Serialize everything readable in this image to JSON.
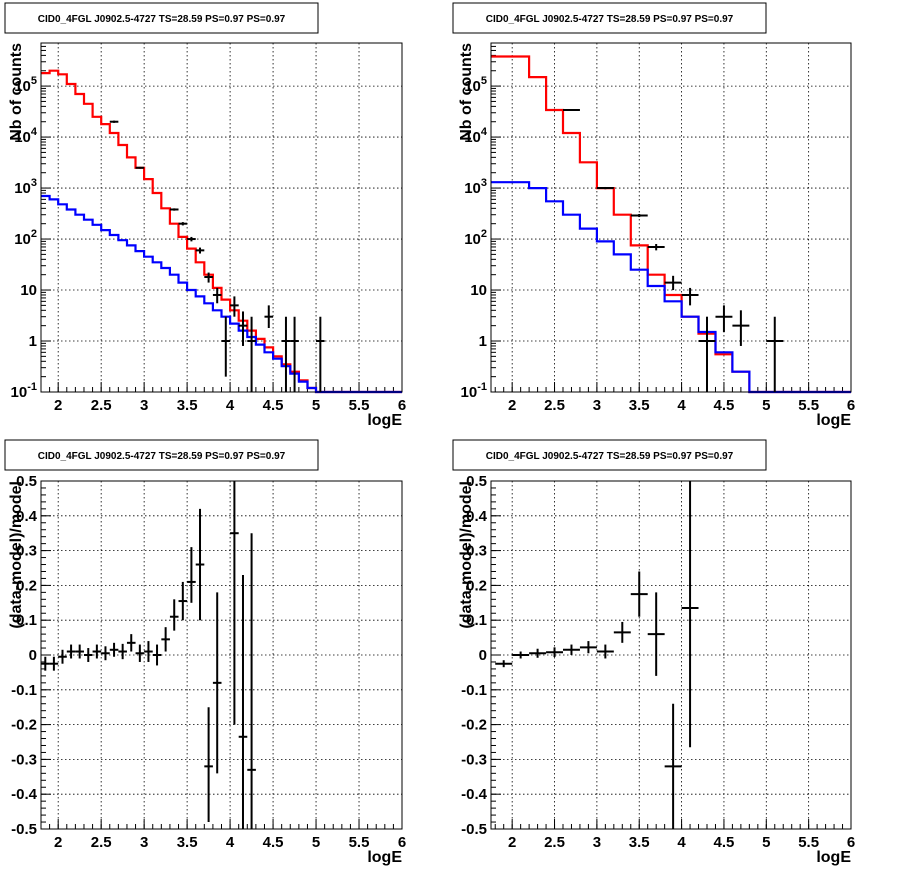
{
  "colors": {
    "model_total": "#ff0000",
    "model_background": "#0000ff",
    "data": "#000000"
  },
  "chart_data": [
    {
      "type": "histogram",
      "title": "CID0_4FGL J0902.5-4727 TS=28.59 PS=0.97 PS=0.97",
      "xlabel": "logE",
      "ylabel": "Nb of counts",
      "ylog": true,
      "xlim": [
        1.8,
        6.0
      ],
      "ylim": [
        0.1,
        700000
      ],
      "grid": true,
      "xticks": [
        "2",
        "2.5",
        "3",
        "3.5",
        "4",
        "4.5",
        "5",
        "5.5",
        "6"
      ],
      "yticks": [
        "10^-1",
        "1",
        "10",
        "10^2",
        "10^3",
        "10^4",
        "10^5"
      ],
      "series": [
        {
          "role": "model_total",
          "kind": "step",
          "edges": [
            1.8,
            1.9,
            2.0,
            2.1,
            2.2,
            2.3,
            2.4,
            2.5,
            2.6,
            2.7,
            2.8,
            2.9,
            3.0,
            3.1,
            3.2,
            3.3,
            3.4,
            3.5,
            3.6,
            3.7,
            3.8,
            3.9,
            4.0,
            4.1,
            4.2,
            4.3,
            4.4,
            4.5,
            4.6,
            4.7,
            4.8,
            4.9,
            5.0,
            5.1,
            5.2,
            5.3,
            5.4,
            5.5,
            5.6,
            5.7,
            5.8,
            5.9,
            6.0
          ],
          "values": [
            180000,
            200000,
            170000,
            110000,
            70000,
            45000,
            25000,
            18000,
            12000,
            7000,
            4000,
            2500,
            1500,
            800,
            400,
            200,
            110,
            65,
            35,
            20,
            11,
            6.5,
            4,
            2.5,
            1.6,
            1.1,
            0.75,
            0.5,
            0.35,
            0.25,
            0.17,
            0.12,
            0.1,
            0.1,
            0.1,
            0.1,
            0.1,
            0.1,
            0.1,
            0.1,
            0.1,
            0.1
          ]
        },
        {
          "role": "model_background",
          "kind": "step",
          "edges": [
            1.8,
            1.9,
            2.0,
            2.1,
            2.2,
            2.3,
            2.4,
            2.5,
            2.6,
            2.7,
            2.8,
            2.9,
            3.0,
            3.1,
            3.2,
            3.3,
            3.4,
            3.5,
            3.6,
            3.7,
            3.8,
            3.9,
            4.0,
            4.1,
            4.2,
            4.3,
            4.4,
            4.5,
            4.6,
            4.7,
            4.8,
            4.9,
            5.0,
            5.1,
            5.2,
            5.3,
            5.4,
            5.5,
            5.6,
            5.7,
            5.8,
            5.9,
            6.0
          ],
          "values": [
            700,
            600,
            480,
            380,
            300,
            240,
            190,
            150,
            120,
            95,
            75,
            58,
            45,
            35,
            27,
            20,
            14,
            10,
            7.5,
            5.5,
            4,
            3,
            2.2,
            1.6,
            1.2,
            0.85,
            0.6,
            0.45,
            0.32,
            0.23,
            0.16,
            0.12,
            0.1,
            0.1,
            0.1,
            0.1,
            0.1,
            0.1,
            0.1,
            0.1,
            0.1,
            0.1
          ]
        },
        {
          "role": "data",
          "kind": "errorbar",
          "points": [
            {
              "x": 2.65,
              "xerr": 0.05,
              "y": 20000,
              "ylo": 19000,
              "yhi": 21000
            },
            {
              "x": 2.95,
              "xerr": 0.05,
              "y": 2500,
              "ylo": 2400,
              "yhi": 2600
            },
            {
              "x": 3.35,
              "xerr": 0.05,
              "y": 380,
              "ylo": 360,
              "yhi": 400
            },
            {
              "x": 3.45,
              "xerr": 0.05,
              "y": 200,
              "ylo": 185,
              "yhi": 215
            },
            {
              "x": 3.55,
              "xerr": 0.05,
              "y": 100,
              "ylo": 90,
              "yhi": 110
            },
            {
              "x": 3.65,
              "xerr": 0.05,
              "y": 60,
              "ylo": 52,
              "yhi": 68
            },
            {
              "x": 3.75,
              "xerr": 0.05,
              "y": 18,
              "ylo": 14,
              "yhi": 22
            },
            {
              "x": 3.85,
              "xerr": 0.05,
              "y": 8,
              "ylo": 5.5,
              "yhi": 11
            },
            {
              "x": 3.95,
              "xerr": 0.05,
              "y": 1,
              "ylo": 0.2,
              "yhi": 3
            },
            {
              "x": 4.05,
              "xerr": 0.05,
              "y": 5,
              "ylo": 3,
              "yhi": 7.5
            },
            {
              "x": 4.15,
              "xerr": 0.05,
              "y": 2,
              "ylo": 0.8,
              "yhi": 3.8
            },
            {
              "x": 4.25,
              "xerr": 0.05,
              "y": 1,
              "ylo": 0.1,
              "yhi": 3
            },
            {
              "x": 4.45,
              "xerr": 0.05,
              "y": 3,
              "ylo": 1.8,
              "yhi": 5
            },
            {
              "x": 4.65,
              "xerr": 0.05,
              "y": 1,
              "ylo": 0.1,
              "yhi": 3
            },
            {
              "x": 4.75,
              "xerr": 0.05,
              "y": 1,
              "ylo": 0.1,
              "yhi": 3
            },
            {
              "x": 5.05,
              "xerr": 0.05,
              "y": 1,
              "ylo": 0.1,
              "yhi": 3
            }
          ]
        }
      ]
    },
    {
      "type": "histogram",
      "title": "CID0_4FGL J0902.5-4727 TS=28.59 PS=0.97 PS=0.97",
      "xlabel": "logE",
      "ylabel": "Nb of counts",
      "ylog": true,
      "xlim": [
        1.75,
        6.0
      ],
      "ylim": [
        0.1,
        700000
      ],
      "grid": true,
      "xticks": [
        "2",
        "2.5",
        "3",
        "3.5",
        "4",
        "4.5",
        "5",
        "5.5",
        "6"
      ],
      "yticks": [
        "10^-1",
        "1",
        "10",
        "10^2",
        "10^3",
        "10^4",
        "10^5"
      ],
      "series": [
        {
          "role": "model_total",
          "kind": "step",
          "edges": [
            1.75,
            2.0,
            2.2,
            2.4,
            2.6,
            2.8,
            3.0,
            3.2,
            3.4,
            3.6,
            3.8,
            4.0,
            4.2,
            4.4,
            4.6,
            4.8,
            5.0,
            5.2,
            5.4,
            5.6,
            5.8,
            6.0
          ],
          "values": [
            380000,
            380000,
            150000,
            34000,
            12000,
            3200,
            1000,
            300,
            75,
            20,
            8,
            3,
            1.4,
            0.55,
            0.25,
            0.1,
            0.1,
            0.1,
            0.1,
            0.1,
            0.1
          ]
        },
        {
          "role": "model_background",
          "kind": "step",
          "edges": [
            1.75,
            2.0,
            2.2,
            2.4,
            2.6,
            2.8,
            3.0,
            3.2,
            3.4,
            3.6,
            3.8,
            4.0,
            4.2,
            4.4,
            4.6,
            4.8,
            5.0,
            5.2,
            5.4,
            5.6,
            5.8,
            6.0
          ],
          "values": [
            1300,
            1300,
            1000,
            550,
            300,
            160,
            90,
            50,
            25,
            12,
            6,
            3,
            1.5,
            0.6,
            0.25,
            0.1,
            0.1,
            0.1,
            0.1,
            0.1,
            0.1
          ]
        },
        {
          "role": "data",
          "kind": "errorbar",
          "points": [
            {
              "x": 2.7,
              "xerr": 0.1,
              "y": 34000,
              "ylo": 33000,
              "yhi": 35000
            },
            {
              "x": 3.1,
              "xerr": 0.1,
              "y": 1000,
              "ylo": 950,
              "yhi": 1050
            },
            {
              "x": 3.5,
              "xerr": 0.1,
              "y": 290,
              "ylo": 270,
              "yhi": 310
            },
            {
              "x": 3.7,
              "xerr": 0.1,
              "y": 70,
              "ylo": 60,
              "yhi": 80
            },
            {
              "x": 3.9,
              "xerr": 0.1,
              "y": 14,
              "ylo": 10,
              "yhi": 19
            },
            {
              "x": 4.1,
              "xerr": 0.1,
              "y": 8,
              "ylo": 5,
              "yhi": 11
            },
            {
              "x": 4.3,
              "xerr": 0.1,
              "y": 1,
              "ylo": 0.1,
              "yhi": 3
            },
            {
              "x": 4.5,
              "xerr": 0.1,
              "y": 3,
              "ylo": 1.5,
              "yhi": 5
            },
            {
              "x": 4.7,
              "xerr": 0.1,
              "y": 2,
              "ylo": 0.8,
              "yhi": 4
            },
            {
              "x": 5.1,
              "xerr": 0.1,
              "y": 1,
              "ylo": 0.1,
              "yhi": 3
            }
          ]
        }
      ]
    },
    {
      "type": "scatter",
      "title": "CID0_4FGL J0902.5-4727 TS=28.59 PS=0.97 PS=0.97",
      "xlabel": "logE",
      "ylabel": "(data-model)/model",
      "xlim": [
        1.8,
        6.0
      ],
      "ylim": [
        -0.5,
        0.5
      ],
      "grid": true,
      "xticks": [
        "2",
        "2.5",
        "3",
        "3.5",
        "4",
        "4.5",
        "5",
        "5.5",
        "6"
      ],
      "yticks": [
        "-0.5",
        "-0.4",
        "-0.3",
        "-0.2",
        "-0.1",
        "0",
        "0.1",
        "0.2",
        "0.3",
        "0.4",
        "0.5"
      ],
      "series": [
        {
          "role": "data",
          "kind": "errorbar",
          "points": [
            {
              "x": 1.85,
              "xerr": 0.05,
              "y": -0.025,
              "ylo": -0.045,
              "yhi": -0.005
            },
            {
              "x": 1.95,
              "xerr": 0.05,
              "y": -0.025,
              "ylo": -0.045,
              "yhi": -0.005
            },
            {
              "x": 2.05,
              "xerr": 0.05,
              "y": -0.005,
              "ylo": -0.025,
              "yhi": 0.015
            },
            {
              "x": 2.15,
              "xerr": 0.05,
              "y": 0.01,
              "ylo": -0.01,
              "yhi": 0.03
            },
            {
              "x": 2.25,
              "xerr": 0.05,
              "y": 0.01,
              "ylo": -0.01,
              "yhi": 0.03
            },
            {
              "x": 2.35,
              "xerr": 0.05,
              "y": 0.0,
              "ylo": -0.02,
              "yhi": 0.02
            },
            {
              "x": 2.45,
              "xerr": 0.05,
              "y": 0.01,
              "ylo": -0.01,
              "yhi": 0.03
            },
            {
              "x": 2.55,
              "xerr": 0.05,
              "y": 0.005,
              "ylo": -0.015,
              "yhi": 0.025
            },
            {
              "x": 2.65,
              "xerr": 0.05,
              "y": 0.015,
              "ylo": -0.005,
              "yhi": 0.035
            },
            {
              "x": 2.75,
              "xerr": 0.05,
              "y": 0.01,
              "ylo": -0.012,
              "yhi": 0.032
            },
            {
              "x": 2.85,
              "xerr": 0.05,
              "y": 0.035,
              "ylo": 0.01,
              "yhi": 0.06
            },
            {
              "x": 2.95,
              "xerr": 0.05,
              "y": 0.005,
              "ylo": -0.02,
              "yhi": 0.03
            },
            {
              "x": 3.05,
              "xerr": 0.05,
              "y": 0.01,
              "ylo": -0.02,
              "yhi": 0.04
            },
            {
              "x": 3.15,
              "xerr": 0.05,
              "y": 0.0,
              "ylo": -0.03,
              "yhi": 0.03
            },
            {
              "x": 3.25,
              "xerr": 0.05,
              "y": 0.045,
              "ylo": 0.01,
              "yhi": 0.08
            },
            {
              "x": 3.35,
              "xerr": 0.05,
              "y": 0.11,
              "ylo": 0.07,
              "yhi": 0.16
            },
            {
              "x": 3.45,
              "xerr": 0.05,
              "y": 0.155,
              "ylo": 0.1,
              "yhi": 0.21
            },
            {
              "x": 3.55,
              "xerr": 0.05,
              "y": 0.21,
              "ylo": 0.15,
              "yhi": 0.31
            },
            {
              "x": 3.65,
              "xerr": 0.05,
              "y": 0.26,
              "ylo": 0.1,
              "yhi": 0.42
            },
            {
              "x": 3.75,
              "xerr": 0.05,
              "y": -0.32,
              "ylo": -0.48,
              "yhi": -0.15
            },
            {
              "x": 3.85,
              "xerr": 0.05,
              "y": -0.08,
              "ylo": -0.34,
              "yhi": 0.18
            },
            {
              "x": 4.05,
              "xerr": 0.05,
              "y": 0.35,
              "ylo": -0.2,
              "yhi": 0.5
            },
            {
              "x": 4.15,
              "xerr": 0.05,
              "y": -0.235,
              "ylo": -0.5,
              "yhi": 0.23
            },
            {
              "x": 4.25,
              "xerr": 0.05,
              "y": -0.33,
              "ylo": -0.5,
              "yhi": 0.35
            }
          ]
        }
      ]
    },
    {
      "type": "scatter",
      "title": "CID0_4FGL J0902.5-4727 TS=28.59 PS=0.97 PS=0.97",
      "xlabel": "logE",
      "ylabel": "(data-model)/model",
      "xlim": [
        1.75,
        6.0
      ],
      "ylim": [
        -0.5,
        0.5
      ],
      "grid": true,
      "xticks": [
        "2",
        "2.5",
        "3",
        "3.5",
        "4",
        "4.5",
        "5",
        "5.5",
        "6"
      ],
      "yticks": [
        "-0.5",
        "-0.4",
        "-0.3",
        "-0.2",
        "-0.1",
        "0",
        "0.1",
        "0.2",
        "0.3",
        "0.4",
        "0.5"
      ],
      "series": [
        {
          "role": "data",
          "kind": "errorbar",
          "points": [
            {
              "x": 1.9,
              "xerr": 0.1,
              "y": -0.025,
              "ylo": -0.035,
              "yhi": -0.015
            },
            {
              "x": 2.1,
              "xerr": 0.1,
              "y": 0.0,
              "ylo": -0.01,
              "yhi": 0.01
            },
            {
              "x": 2.3,
              "xerr": 0.1,
              "y": 0.005,
              "ylo": -0.008,
              "yhi": 0.018
            },
            {
              "x": 2.5,
              "xerr": 0.1,
              "y": 0.008,
              "ylo": -0.006,
              "yhi": 0.022
            },
            {
              "x": 2.7,
              "xerr": 0.1,
              "y": 0.015,
              "ylo": 0.0,
              "yhi": 0.03
            },
            {
              "x": 2.9,
              "xerr": 0.1,
              "y": 0.022,
              "ylo": 0.005,
              "yhi": 0.04
            },
            {
              "x": 3.1,
              "xerr": 0.1,
              "y": 0.01,
              "ylo": -0.01,
              "yhi": 0.03
            },
            {
              "x": 3.3,
              "xerr": 0.1,
              "y": 0.065,
              "ylo": 0.035,
              "yhi": 0.095
            },
            {
              "x": 3.5,
              "xerr": 0.1,
              "y": 0.175,
              "ylo": 0.11,
              "yhi": 0.24
            },
            {
              "x": 3.7,
              "xerr": 0.1,
              "y": 0.06,
              "ylo": -0.06,
              "yhi": 0.18
            },
            {
              "x": 3.9,
              "xerr": 0.1,
              "y": -0.32,
              "ylo": -0.5,
              "yhi": -0.14
            },
            {
              "x": 4.1,
              "xerr": 0.1,
              "y": 0.135,
              "ylo": -0.265,
              "yhi": 0.5
            }
          ]
        }
      ]
    }
  ]
}
